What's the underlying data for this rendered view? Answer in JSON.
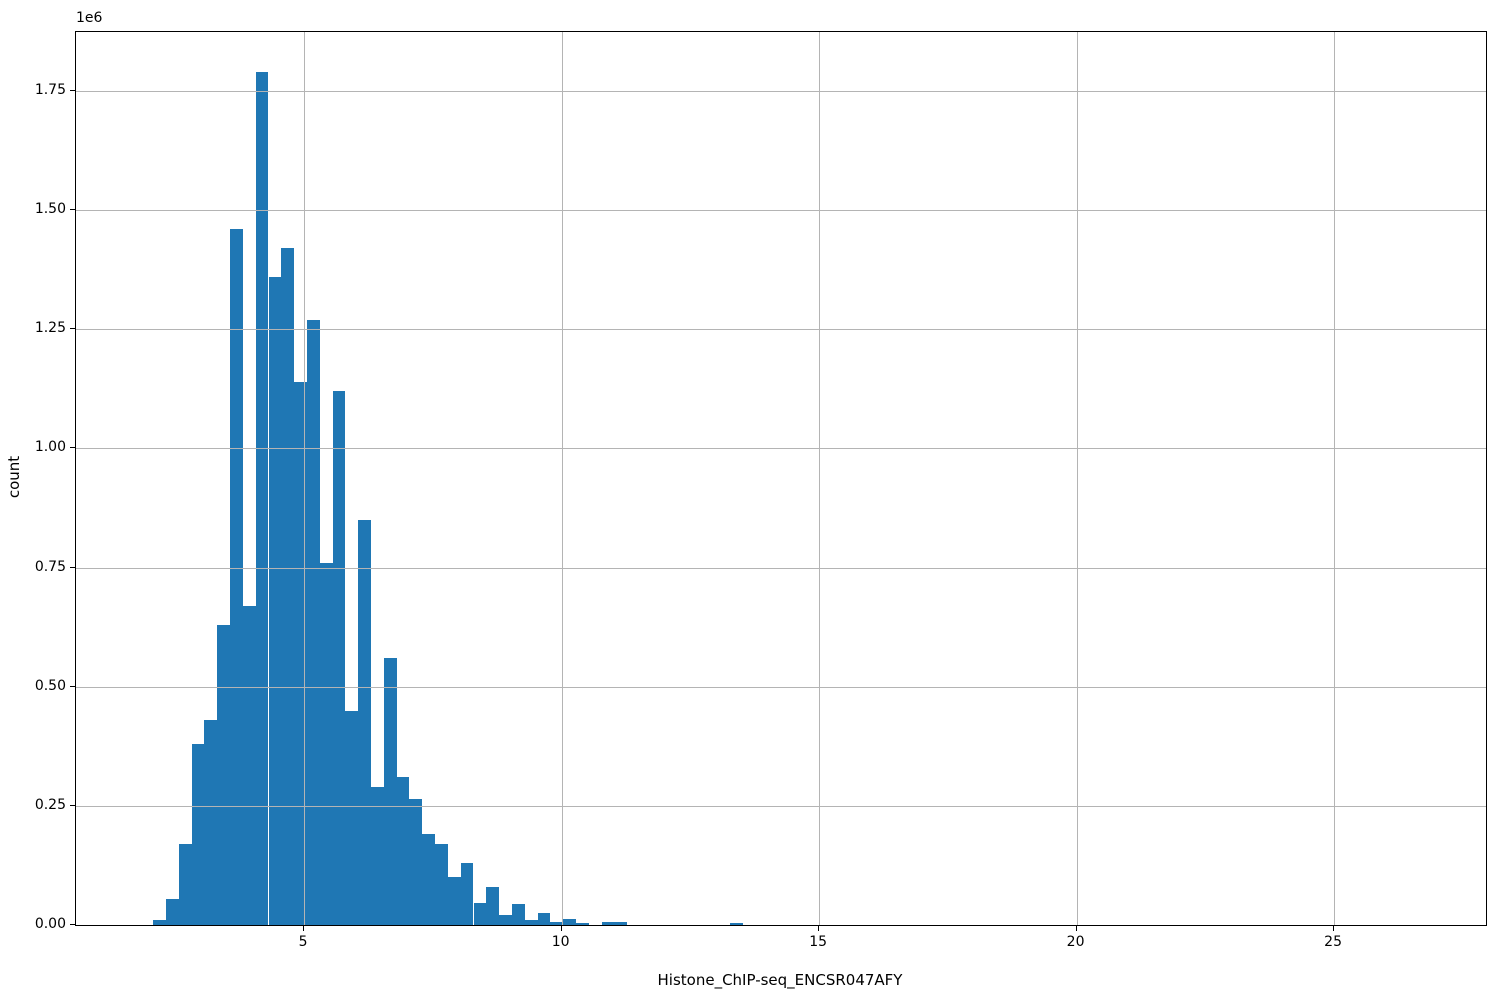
{
  "figure": {
    "offset_label": "1e6",
    "ylabel": "count",
    "xlabel": "Histone_ChIP-seq_ENCSR047AFY"
  },
  "chart_data": {
    "type": "bar",
    "subtype": "histogram",
    "title": "",
    "xlabel": "Histone_ChIP-seq_ENCSR047AFY",
    "ylabel": "count",
    "y_offset_label": "1e6",
    "bar_color": "#1f77b4",
    "grid": true,
    "grid_on_top": true,
    "grid_color": "#b4b4b4",
    "xlim": [
      0.57,
      27.95
    ],
    "ylim": [
      0,
      1874000
    ],
    "xticks": [
      {
        "v": 5,
        "label": "5"
      },
      {
        "v": 10,
        "label": "10"
      },
      {
        "v": 15,
        "label": "15"
      },
      {
        "v": 20,
        "label": "20"
      },
      {
        "v": 25,
        "label": "25"
      }
    ],
    "yticks": [
      {
        "v": 0,
        "label": "0.00"
      },
      {
        "v": 250000,
        "label": "0.25"
      },
      {
        "v": 500000,
        "label": "0.50"
      },
      {
        "v": 750000,
        "label": "0.75"
      },
      {
        "v": 1000000,
        "label": "1.00"
      },
      {
        "v": 1250000,
        "label": "1.25"
      },
      {
        "v": 1500000,
        "label": "1.50"
      },
      {
        "v": 1750000,
        "label": "1.75"
      }
    ],
    "bins": {
      "start": 2.069,
      "width": 0.2488
    },
    "counts": [
      10000,
      55000,
      170000,
      380000,
      430000,
      630000,
      1460000,
      670000,
      1790000,
      1360000,
      1420000,
      1140000,
      1270000,
      760000,
      1120000,
      450000,
      850000,
      290000,
      560000,
      310000,
      265000,
      190000,
      170000,
      100000,
      130000,
      47000,
      80000,
      21000,
      45000,
      11000,
      26000,
      6000,
      12000,
      4000,
      0,
      5500,
      5500,
      0,
      0,
      0,
      0,
      0,
      0,
      0,
      0,
      4000
    ]
  }
}
